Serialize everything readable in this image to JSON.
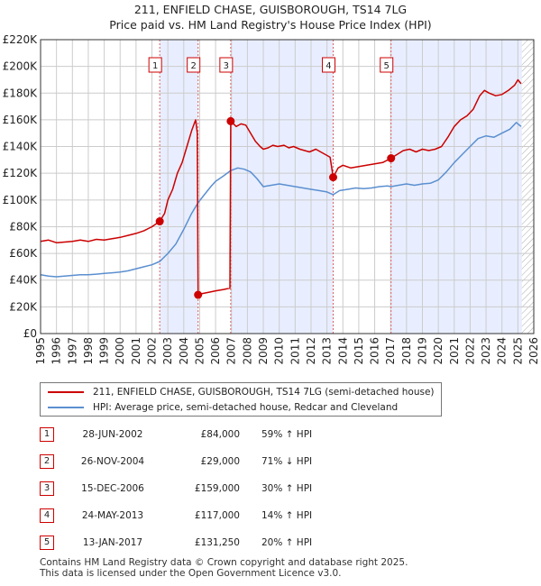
{
  "title_line1": "211, ENFIELD CHASE, GUISBOROUGH, TS14 7LG",
  "title_line2": "Price paid vs. HM Land Registry's House Price Index (HPI)",
  "colors": {
    "price_line": "#cc0000",
    "hpi_line": "#5b8fd0",
    "highlight_band": "#e8eeff",
    "grid": "#cccccc"
  },
  "chart_data": {
    "type": "line",
    "title": "Price paid vs. HM Land Registry's House Price Index (HPI)",
    "xlim": [
      1995,
      2026
    ],
    "ylim": [
      0,
      220000
    ],
    "x_ticks": [
      "1995",
      "1996",
      "1997",
      "1998",
      "1999",
      "2000",
      "2001",
      "2002",
      "2003",
      "2004",
      "2005",
      "2006",
      "2007",
      "2008",
      "2009",
      "2010",
      "2011",
      "2012",
      "2013",
      "2014",
      "2015",
      "2016",
      "2017",
      "2018",
      "2019",
      "2020",
      "2021",
      "2022",
      "2023",
      "2024",
      "2025",
      "2026"
    ],
    "y_ticks": [
      {
        "value": 0,
        "label": "£0"
      },
      {
        "value": 20000,
        "label": "£20K"
      },
      {
        "value": 40000,
        "label": "£40K"
      },
      {
        "value": 60000,
        "label": "£60K"
      },
      {
        "value": 80000,
        "label": "£80K"
      },
      {
        "value": 100000,
        "label": "£100K"
      },
      {
        "value": 120000,
        "label": "£120K"
      },
      {
        "value": 140000,
        "label": "£140K"
      },
      {
        "value": 160000,
        "label": "£160K"
      },
      {
        "value": 180000,
        "label": "£180K"
      },
      {
        "value": 200000,
        "label": "£200K"
      },
      {
        "value": 220000,
        "label": "£220K"
      }
    ],
    "shaded_bands": [
      [
        2002.49,
        2004.9
      ],
      [
        2006.95,
        2013.39
      ],
      [
        2017.03,
        2025.25
      ]
    ],
    "hatched_region": [
      2025.25,
      2026
    ],
    "series": [
      {
        "name": "211, ENFIELD CHASE, GUISBOROUGH, TS14 7LG (semi-detached house)",
        "color": "#cc0000",
        "points": [
          [
            1995.0,
            69000
          ],
          [
            1995.5,
            70000
          ],
          [
            1996.0,
            68000
          ],
          [
            1996.5,
            68500
          ],
          [
            1997.0,
            69000
          ],
          [
            1997.5,
            70000
          ],
          [
            1998.0,
            69000
          ],
          [
            1998.5,
            70500
          ],
          [
            1999.0,
            70000
          ],
          [
            1999.5,
            71000
          ],
          [
            2000.0,
            72000
          ],
          [
            2000.5,
            73500
          ],
          [
            2001.0,
            75000
          ],
          [
            2001.5,
            77000
          ],
          [
            2002.0,
            80000
          ],
          [
            2002.49,
            84000
          ],
          [
            2002.8,
            90000
          ],
          [
            2003.0,
            100000
          ],
          [
            2003.3,
            108000
          ],
          [
            2003.6,
            120000
          ],
          [
            2003.9,
            128000
          ],
          [
            2004.2,
            140000
          ],
          [
            2004.5,
            152000
          ],
          [
            2004.75,
            160000
          ],
          [
            2004.85,
            150000
          ],
          [
            2004.9,
            29000
          ],
          [
            2005.2,
            30000
          ],
          [
            2005.6,
            31000
          ],
          [
            2006.0,
            32000
          ],
          [
            2006.5,
            33000
          ],
          [
            2006.9,
            34000
          ],
          [
            2006.95,
            159000
          ],
          [
            2007.3,
            155000
          ],
          [
            2007.6,
            157000
          ],
          [
            2007.9,
            156000
          ],
          [
            2008.2,
            150000
          ],
          [
            2008.5,
            144000
          ],
          [
            2008.8,
            140000
          ],
          [
            2009.0,
            138000
          ],
          [
            2009.3,
            139000
          ],
          [
            2009.6,
            141000
          ],
          [
            2009.9,
            140000
          ],
          [
            2010.3,
            141000
          ],
          [
            2010.6,
            139000
          ],
          [
            2010.9,
            140000
          ],
          [
            2011.3,
            138000
          ],
          [
            2011.6,
            137000
          ],
          [
            2011.9,
            136000
          ],
          [
            2012.3,
            138000
          ],
          [
            2012.6,
            136000
          ],
          [
            2012.9,
            134000
          ],
          [
            2013.2,
            132000
          ],
          [
            2013.39,
            117000
          ],
          [
            2013.7,
            124000
          ],
          [
            2014.0,
            126000
          ],
          [
            2014.5,
            124000
          ],
          [
            2015.0,
            125000
          ],
          [
            2015.5,
            126000
          ],
          [
            2016.0,
            127000
          ],
          [
            2016.5,
            128000
          ],
          [
            2017.03,
            131250
          ],
          [
            2017.4,
            134000
          ],
          [
            2017.8,
            137000
          ],
          [
            2018.2,
            138000
          ],
          [
            2018.6,
            136000
          ],
          [
            2019.0,
            138000
          ],
          [
            2019.4,
            137000
          ],
          [
            2019.8,
            138000
          ],
          [
            2020.2,
            140000
          ],
          [
            2020.6,
            147000
          ],
          [
            2021.0,
            155000
          ],
          [
            2021.4,
            160000
          ],
          [
            2021.8,
            163000
          ],
          [
            2022.2,
            168000
          ],
          [
            2022.6,
            178000
          ],
          [
            2022.9,
            182000
          ],
          [
            2023.2,
            180000
          ],
          [
            2023.6,
            178000
          ],
          [
            2024.0,
            179000
          ],
          [
            2024.4,
            182000
          ],
          [
            2024.8,
            186000
          ],
          [
            2025.0,
            190000
          ],
          [
            2025.2,
            187000
          ]
        ]
      },
      {
        "name": "HPI: Average price, semi-detached house, Redcar and Cleveland",
        "color": "#5b8fd0",
        "points": [
          [
            1995.0,
            44000
          ],
          [
            1995.5,
            43000
          ],
          [
            1996.0,
            42500
          ],
          [
            1996.5,
            43000
          ],
          [
            1997.0,
            43500
          ],
          [
            1997.5,
            44000
          ],
          [
            1998.0,
            44000
          ],
          [
            1998.5,
            44500
          ],
          [
            1999.0,
            45000
          ],
          [
            1999.5,
            45500
          ],
          [
            2000.0,
            46000
          ],
          [
            2000.5,
            47000
          ],
          [
            2001.0,
            48500
          ],
          [
            2001.5,
            50000
          ],
          [
            2002.0,
            51500
          ],
          [
            2002.49,
            54000
          ],
          [
            2003.0,
            60000
          ],
          [
            2003.5,
            67000
          ],
          [
            2004.0,
            78000
          ],
          [
            2004.5,
            90000
          ],
          [
            2004.9,
            98000
          ],
          [
            2005.3,
            104000
          ],
          [
            2005.7,
            110000
          ],
          [
            2006.0,
            114000
          ],
          [
            2006.5,
            118000
          ],
          [
            2006.95,
            122000
          ],
          [
            2007.4,
            124000
          ],
          [
            2007.8,
            123000
          ],
          [
            2008.2,
            121000
          ],
          [
            2008.6,
            116000
          ],
          [
            2009.0,
            110000
          ],
          [
            2009.5,
            111000
          ],
          [
            2010.0,
            112000
          ],
          [
            2010.5,
            111000
          ],
          [
            2011.0,
            110000
          ],
          [
            2011.5,
            109000
          ],
          [
            2012.0,
            108000
          ],
          [
            2012.5,
            107000
          ],
          [
            2013.0,
            106000
          ],
          [
            2013.39,
            104000
          ],
          [
            2013.8,
            107000
          ],
          [
            2014.3,
            108000
          ],
          [
            2014.8,
            109000
          ],
          [
            2015.3,
            108500
          ],
          [
            2015.8,
            109000
          ],
          [
            2016.3,
            110000
          ],
          [
            2016.8,
            110500
          ],
          [
            2017.03,
            110000
          ],
          [
            2017.5,
            111000
          ],
          [
            2018.0,
            112000
          ],
          [
            2018.5,
            111000
          ],
          [
            2019.0,
            112000
          ],
          [
            2019.5,
            112500
          ],
          [
            2020.0,
            115000
          ],
          [
            2020.5,
            121000
          ],
          [
            2021.0,
            128000
          ],
          [
            2021.5,
            134000
          ],
          [
            2022.0,
            140000
          ],
          [
            2022.5,
            146000
          ],
          [
            2023.0,
            148000
          ],
          [
            2023.5,
            147000
          ],
          [
            2024.0,
            150000
          ],
          [
            2024.5,
            153000
          ],
          [
            2024.9,
            158000
          ],
          [
            2025.2,
            155000
          ]
        ]
      }
    ],
    "sales": [
      {
        "n": "1",
        "x": 2002.49,
        "y": 84000
      },
      {
        "n": "2",
        "x": 2004.9,
        "y": 29000
      },
      {
        "n": "3",
        "x": 2006.95,
        "y": 159000
      },
      {
        "n": "4",
        "x": 2013.39,
        "y": 117000
      },
      {
        "n": "5",
        "x": 2017.03,
        "y": 131250
      }
    ]
  },
  "legend": {
    "price_label": "211, ENFIELD CHASE, GUISBOROUGH, TS14 7LG (semi-detached house)",
    "hpi_label": "HPI: Average price, semi-detached house, Redcar and Cleveland"
  },
  "transactions": [
    {
      "n": "1",
      "date": "28-JUN-2002",
      "price": "£84,000",
      "hpi": "59% ↑ HPI"
    },
    {
      "n": "2",
      "date": "26-NOV-2004",
      "price": "£29,000",
      "hpi": "71% ↓ HPI"
    },
    {
      "n": "3",
      "date": "15-DEC-2006",
      "price": "£159,000",
      "hpi": "30% ↑ HPI"
    },
    {
      "n": "4",
      "date": "24-MAY-2013",
      "price": "£117,000",
      "hpi": "14% ↑ HPI"
    },
    {
      "n": "5",
      "date": "13-JAN-2017",
      "price": "£131,250",
      "hpi": "20% ↑ HPI"
    }
  ],
  "footer_line1": "Contains HM Land Registry data © Crown copyright and database right 2025.",
  "footer_line2": "This data is licensed under the Open Government Licence v3.0."
}
